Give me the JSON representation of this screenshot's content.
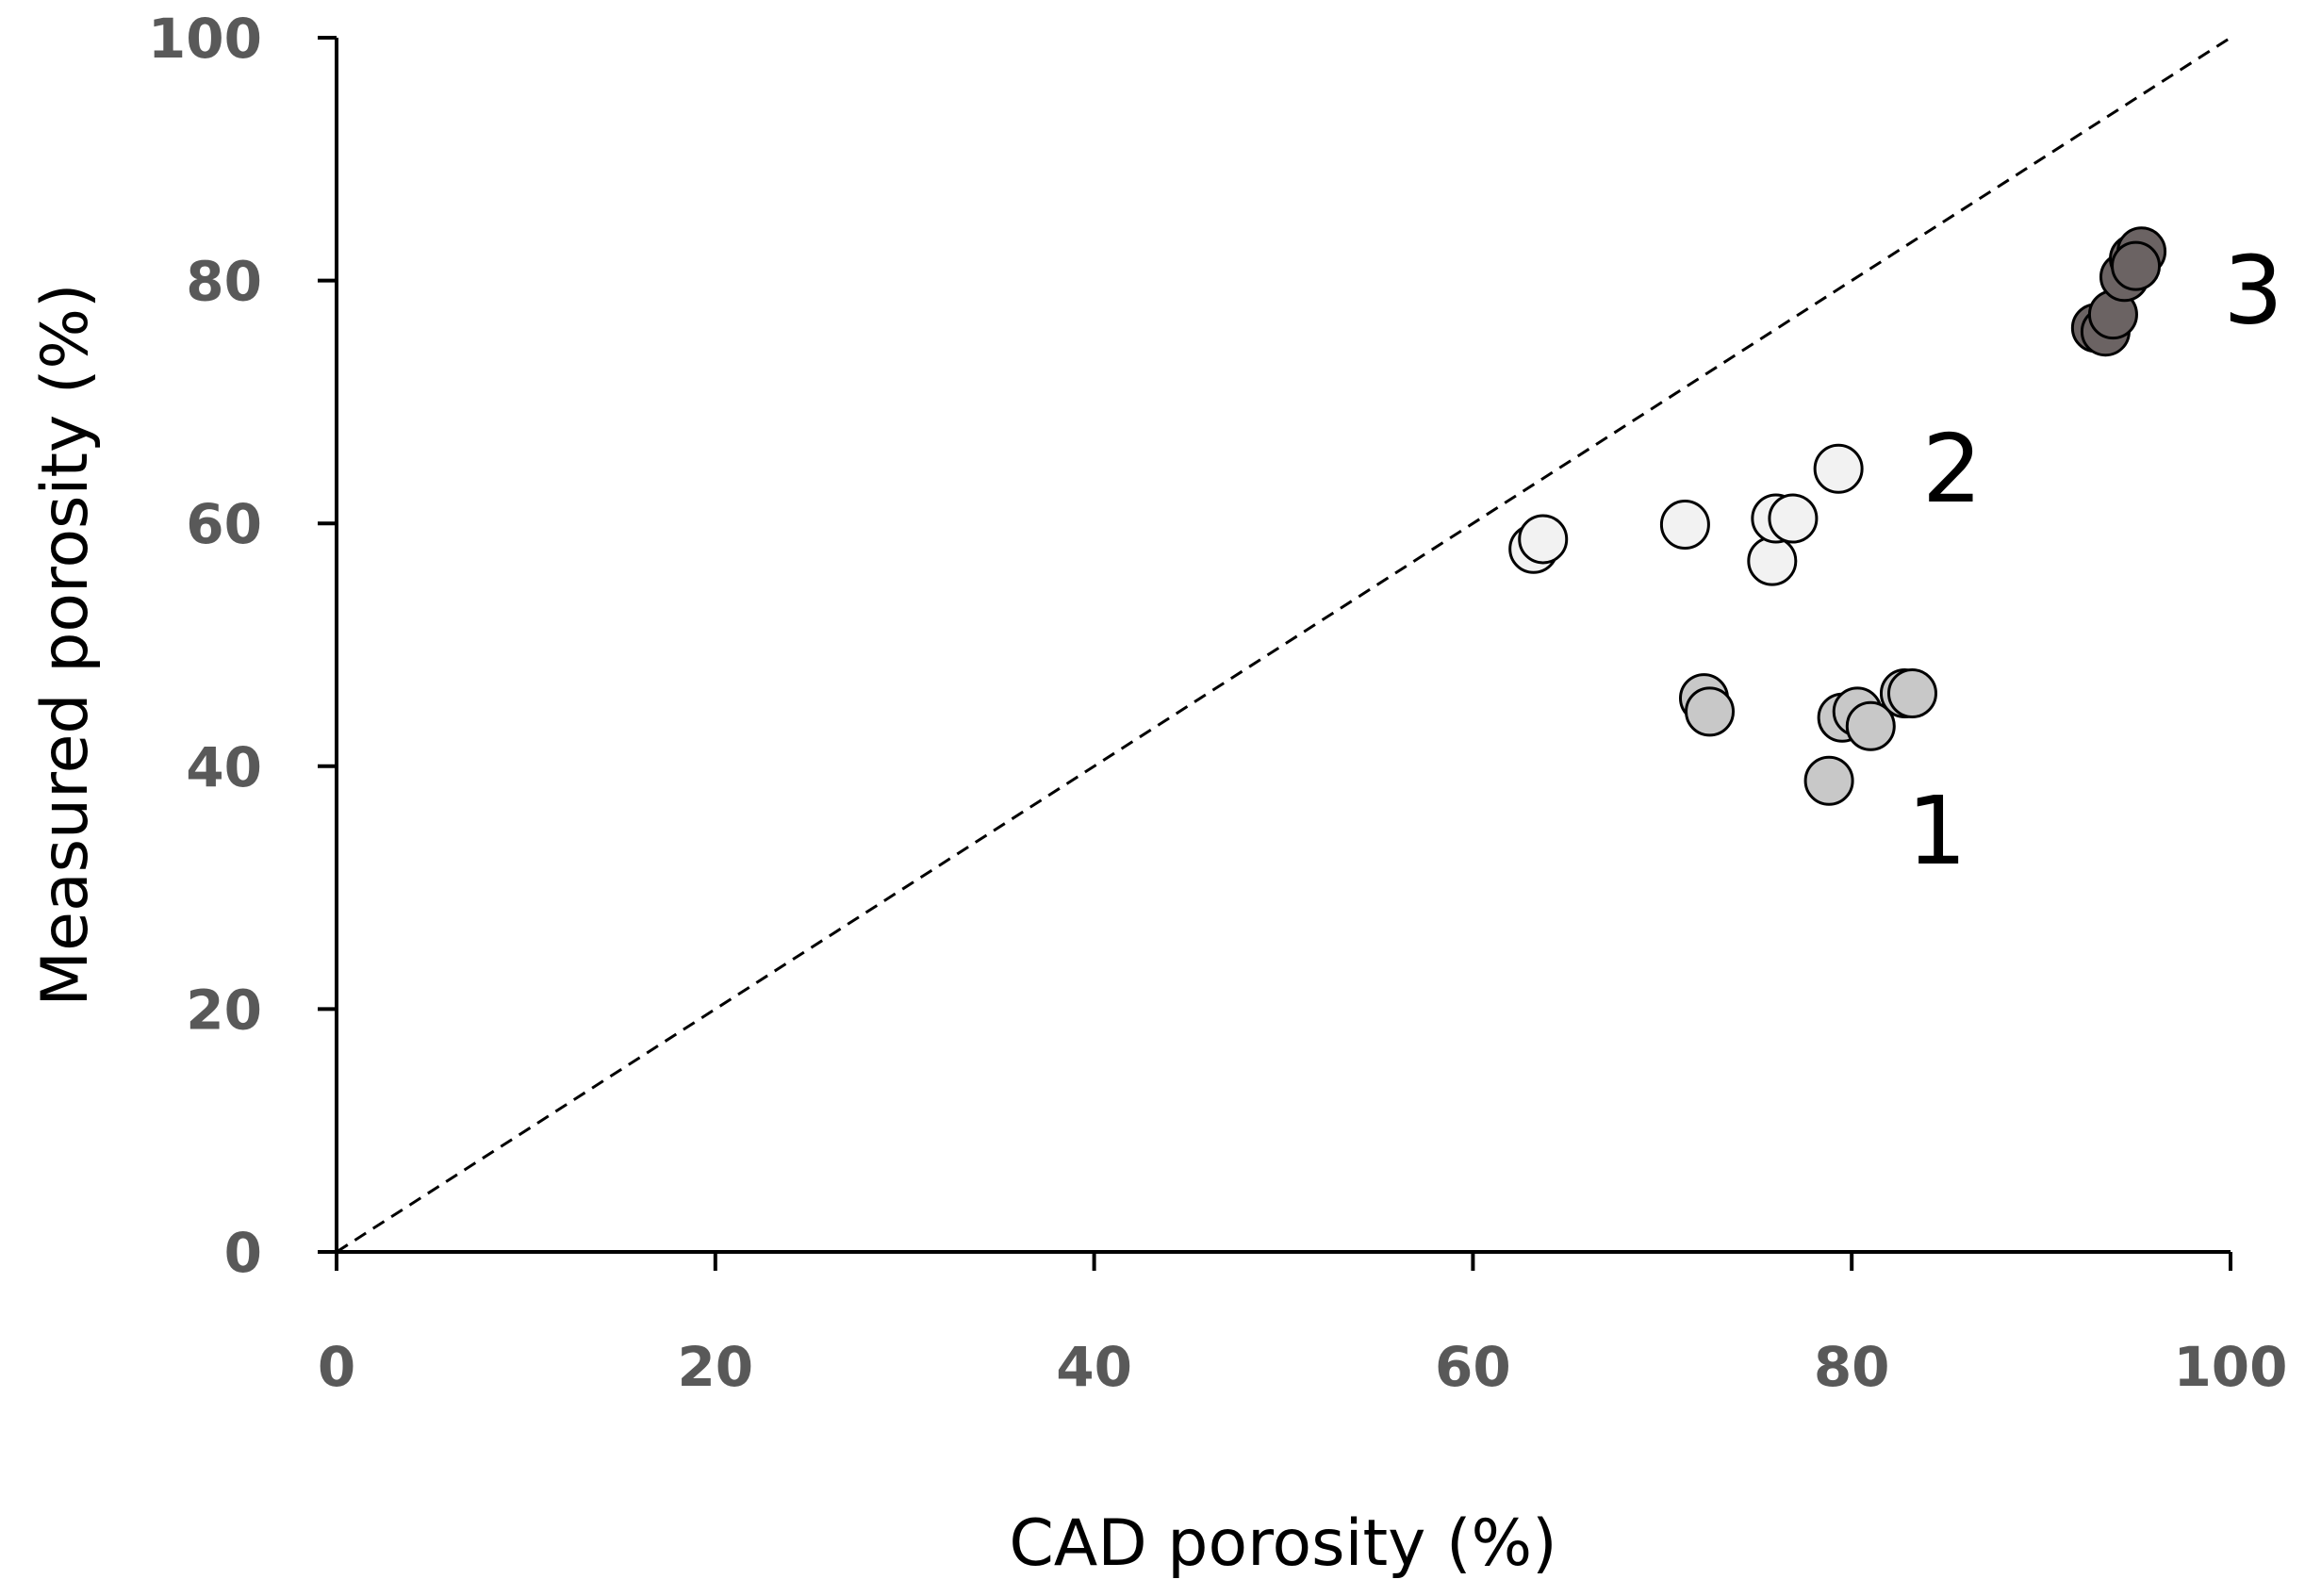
{
  "chart_data": {
    "type": "scatter",
    "title": "",
    "xlabel": "CAD porosity (%)",
    "ylabel": "Measured porosity (%)",
    "xlim": [
      0,
      100
    ],
    "ylim": [
      0,
      100
    ],
    "xticks": [
      "0",
      "20",
      "40",
      "60",
      "80",
      "100"
    ],
    "yticks": [
      "0",
      "20",
      "40",
      "60",
      "80",
      "100"
    ],
    "grid": false,
    "reference_line": {
      "type": "identity",
      "style": "dashed",
      "from": [
        0,
        0
      ],
      "to": [
        100,
        100
      ]
    },
    "series": [
      {
        "name": "1",
        "color": "#c8c8c8",
        "points": [
          {
            "x": 72.2,
            "y": 45.6
          },
          {
            "x": 72.5,
            "y": 44.5
          },
          {
            "x": 78.8,
            "y": 38.8
          },
          {
            "x": 79.5,
            "y": 44.0
          },
          {
            "x": 80.3,
            "y": 44.5
          },
          {
            "x": 81.0,
            "y": 43.3
          },
          {
            "x": 82.8,
            "y": 46.0
          },
          {
            "x": 83.2,
            "y": 46.0
          }
        ],
        "label": {
          "text": "1",
          "x": 84.5,
          "y": 32
        }
      },
      {
        "name": "2",
        "color": "#f2f2f2",
        "points": [
          {
            "x": 63.2,
            "y": 57.9
          },
          {
            "x": 63.7,
            "y": 58.7
          },
          {
            "x": 71.2,
            "y": 59.9
          },
          {
            "x": 75.8,
            "y": 56.9
          },
          {
            "x": 76.0,
            "y": 60.4
          },
          {
            "x": 76.9,
            "y": 60.4
          },
          {
            "x": 79.3,
            "y": 64.5
          }
        ],
        "label": {
          "text": "2",
          "x": 85.3,
          "y": 61.8
        }
      },
      {
        "name": "3",
        "color": "#6b6363",
        "points": [
          {
            "x": 92.9,
            "y": 76.1
          },
          {
            "x": 93.4,
            "y": 75.8
          },
          {
            "x": 93.8,
            "y": 77.2
          },
          {
            "x": 94.4,
            "y": 80.3
          },
          {
            "x": 94.9,
            "y": 81.8
          },
          {
            "x": 95.3,
            "y": 82.4
          },
          {
            "x": 95.0,
            "y": 81.2
          }
        ],
        "label": {
          "text": "3",
          "x": 101.2,
          "y": 76.5
        }
      }
    ]
  }
}
